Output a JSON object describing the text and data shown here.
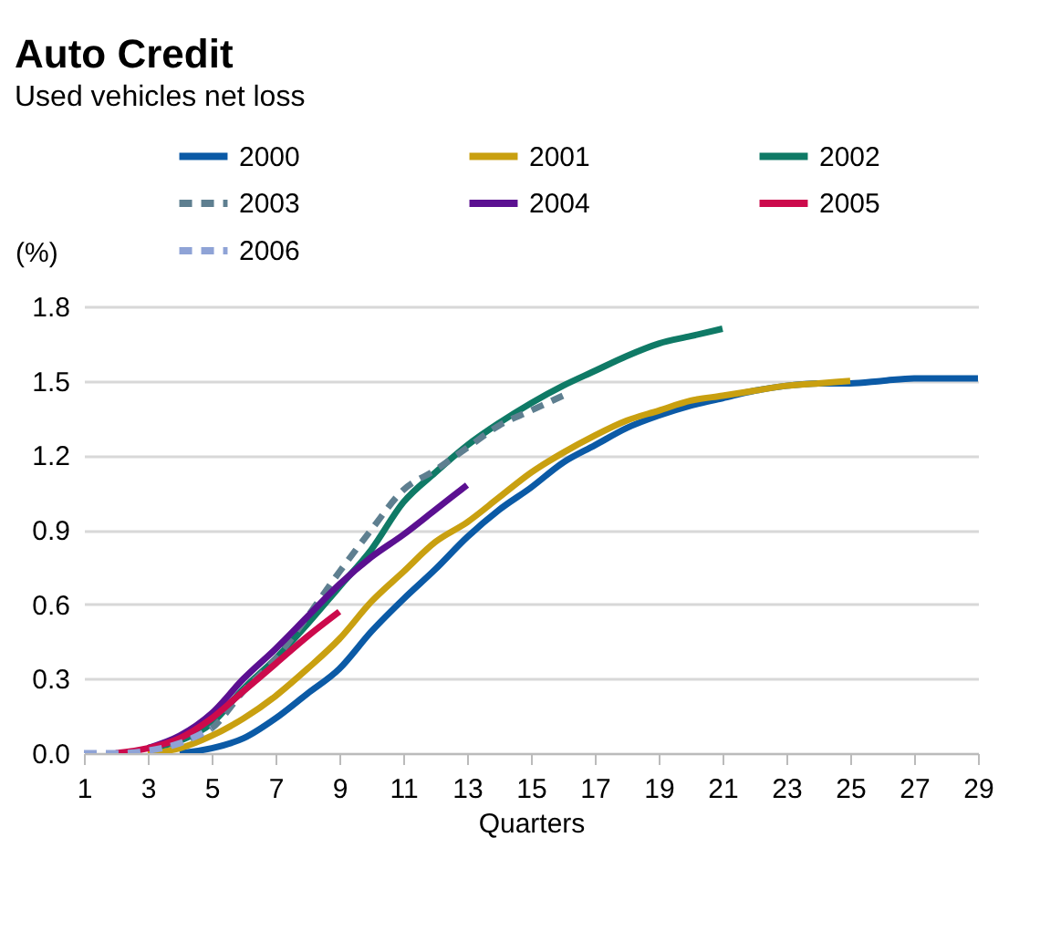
{
  "chart_data": {
    "type": "line",
    "title": "Auto Credit",
    "subtitle": "Used vehicles net loss",
    "xlabel": "Quarters",
    "ylabel": "(%)",
    "xlim": [
      1,
      29
    ],
    "xticks": [
      1,
      3,
      5,
      7,
      9,
      11,
      13,
      15,
      17,
      19,
      21,
      23,
      25,
      27,
      29
    ],
    "ylim": [
      0,
      1.8
    ],
    "yticks": [
      {
        "value": 0,
        "label": "0.0"
      },
      0.3,
      0.6,
      0.9,
      1.2,
      1.5,
      1.8
    ],
    "grid": "y",
    "legend": "top",
    "marker": "none",
    "series": [
      {
        "name": "2000",
        "color": "#0b5aa6",
        "line_style": "solid",
        "x": [
          4,
          5,
          6,
          7,
          8,
          9,
          10,
          11,
          12,
          13,
          14,
          15,
          16,
          17,
          18,
          19,
          20,
          21,
          22,
          23,
          24,
          25,
          26,
          27,
          28,
          29
        ],
        "values": [
          0,
          0.02,
          0.06,
          0.14,
          0.24,
          0.34,
          0.49,
          0.62,
          0.74,
          0.87,
          0.98,
          1.07,
          1.17,
          1.24,
          1.31,
          1.36,
          1.4,
          1.43,
          1.46,
          1.48,
          1.49,
          1.49,
          1.5,
          1.51,
          1.51,
          1.51
        ]
      },
      {
        "name": "2001",
        "color": "#c9a010",
        "line_style": "solid",
        "x": [
          3,
          4,
          5,
          6,
          7,
          8,
          9,
          10,
          11,
          12,
          13,
          14,
          15,
          16,
          17,
          18,
          19,
          20,
          21,
          22,
          23,
          24,
          25
        ],
        "values": [
          0,
          0.02,
          0.07,
          0.14,
          0.23,
          0.34,
          0.46,
          0.61,
          0.73,
          0.85,
          0.93,
          1.03,
          1.13,
          1.21,
          1.28,
          1.34,
          1.38,
          1.42,
          1.44,
          1.46,
          1.48,
          1.49,
          1.5
        ]
      },
      {
        "name": "2002",
        "color": "#0f7a66",
        "line_style": "solid",
        "x": [
          3,
          4,
          5,
          6,
          7,
          8,
          9,
          10,
          11,
          12,
          13,
          14,
          15,
          16,
          17,
          18,
          19,
          20,
          21
        ],
        "values": [
          0.02,
          0.05,
          0.12,
          0.26,
          0.38,
          0.52,
          0.67,
          0.82,
          1.01,
          1.13,
          1.24,
          1.33,
          1.41,
          1.48,
          1.54,
          1.6,
          1.65,
          1.68,
          1.71
        ]
      },
      {
        "name": "2003",
        "color": "#5e7f90",
        "line_style": "dashed",
        "x": [
          3,
          4,
          5,
          6,
          7,
          8,
          9,
          10,
          11,
          12,
          13,
          14,
          15,
          16
        ],
        "values": [
          0.02,
          0.05,
          0.1,
          0.25,
          0.38,
          0.55,
          0.73,
          0.9,
          1.06,
          1.14,
          1.23,
          1.32,
          1.38,
          1.44
        ]
      },
      {
        "name": "2004",
        "color": "#5b1091",
        "line_style": "solid",
        "x": [
          3,
          4,
          5,
          6,
          7,
          8,
          9,
          10,
          11,
          12,
          13
        ],
        "values": [
          0.02,
          0.07,
          0.16,
          0.3,
          0.42,
          0.55,
          0.68,
          0.79,
          0.88,
          0.98,
          1.08
        ]
      },
      {
        "name": "2005",
        "color": "#cc0a4c",
        "line_style": "solid",
        "x": [
          2,
          3,
          4,
          5,
          6,
          7,
          8,
          9
        ],
        "values": [
          0,
          0.02,
          0.06,
          0.14,
          0.25,
          0.36,
          0.47,
          0.57
        ]
      },
      {
        "name": "2006",
        "color": "#8fa3d6",
        "line_style": "dashed",
        "x": [
          1,
          2,
          3,
          4,
          5
        ],
        "values": [
          0,
          0,
          0.01,
          0.04,
          0.1
        ]
      }
    ]
  }
}
